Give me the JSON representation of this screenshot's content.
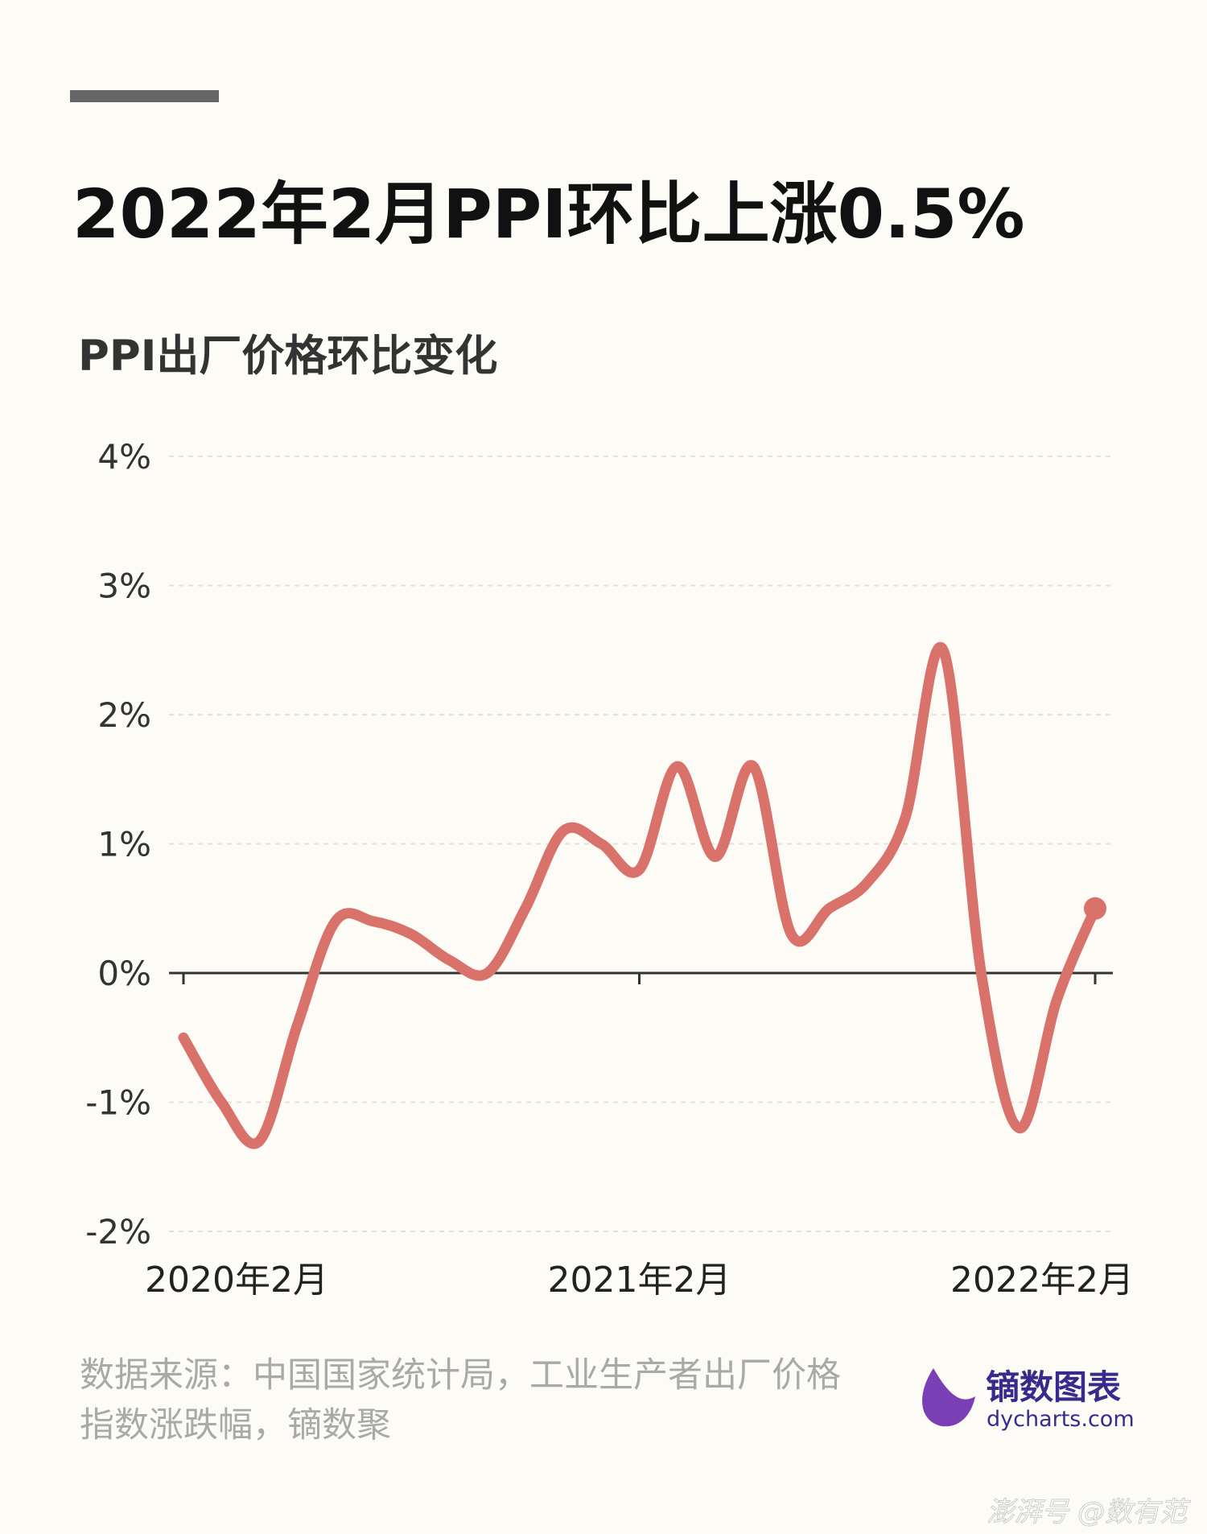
{
  "chart_data": {
    "type": "line",
    "title": "2022年2月PPI环比上涨0.5%",
    "subtitle": "PPI出厂价格环比变化",
    "categories": [
      "2020年2月",
      null,
      null,
      null,
      null,
      null,
      null,
      null,
      null,
      null,
      null,
      null,
      "2021年2月",
      null,
      null,
      null,
      null,
      null,
      null,
      null,
      null,
      null,
      null,
      null,
      "2022年2月"
    ],
    "values": [
      -0.5,
      -1.0,
      -1.3,
      -0.4,
      0.4,
      0.4,
      0.3,
      0.1,
      0.0,
      0.5,
      1.1,
      1.0,
      0.8,
      1.6,
      0.9,
      1.6,
      0.3,
      0.5,
      0.7,
      1.2,
      2.5,
      0.0,
      -1.2,
      -0.2,
      0.5
    ],
    "color": "#d9726b",
    "ylim": [
      -2,
      4
    ],
    "yticks": [
      {
        "value": -2,
        "label": "-2%"
      },
      {
        "value": -1,
        "label": "-1%"
      },
      {
        "value": 0,
        "label": "0%"
      },
      {
        "value": 1,
        "label": "1%"
      },
      {
        "value": 2,
        "label": "2%"
      },
      {
        "value": 3,
        "label": "3%"
      },
      {
        "value": 4,
        "label": "4%"
      }
    ],
    "grid": true,
    "source": "数据来源：中国国家统计局，工业生产者出厂价格指数涨跌幅，镝数聚",
    "logo_name": "镝数图表",
    "logo_url": "dycharts.com",
    "watermark": "澎湃号 @数有范"
  }
}
